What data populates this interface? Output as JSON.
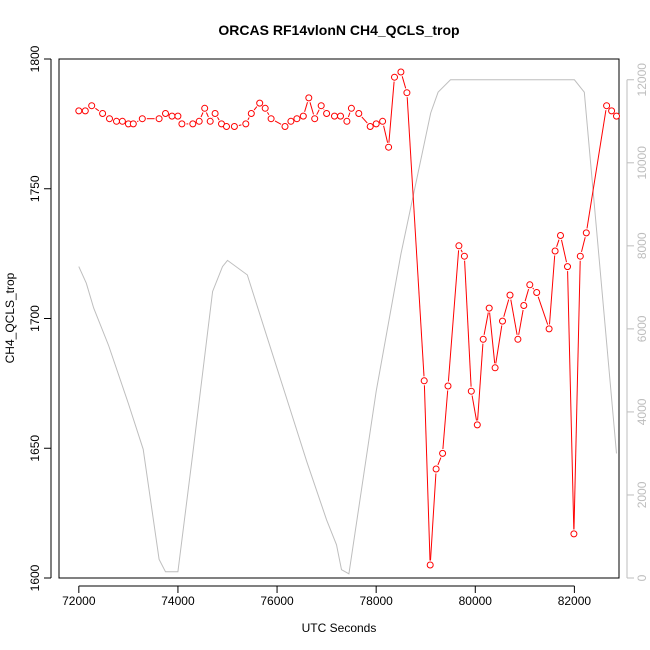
{
  "chart_data": {
    "type": "line",
    "title": "ORCAS RF14vlonN CH4_QCLS_trop",
    "xlabel": "UTC Seconds",
    "ylabel": "CH4_QCLS_trop",
    "xlim": [
      71600,
      82900
    ],
    "ylim": [
      1600,
      1800
    ],
    "y2lim": [
      0,
      12500
    ],
    "x_ticks": [
      72000,
      74000,
      76000,
      78000,
      80000,
      82000
    ],
    "y_ticks": [
      1600,
      1650,
      1700,
      1750,
      1800
    ],
    "y2_ticks": [
      0,
      2000,
      4000,
      6000,
      8000,
      10000,
      12000
    ],
    "grid": false,
    "colors": {
      "ch4": "#ff0000",
      "altitude": "#bebebe",
      "axis": "#000000",
      "right_axis": "#bdbdbd"
    },
    "series": [
      {
        "values_x": [
          72000,
          72130,
          72260,
          72480,
          72620,
          72760,
          72880,
          73000,
          73100,
          73280,
          73620,
          73750,
          73880,
          74000,
          74080,
          74300,
          74430,
          74540,
          74650,
          74750,
          74880,
          74980,
          75140,
          75370,
          75480,
          75650,
          75760,
          75880,
          76160,
          76280,
          76400,
          76530,
          76640,
          76760,
          76890,
          77000,
          77160,
          77280,
          77410,
          77500,
          77650,
          77880,
          78000,
          78130,
          78250,
          78370,
          78500,
          78620,
          78970,
          79090,
          79210,
          79340,
          79450,
          79670,
          79780,
          79920,
          80040,
          80160,
          80280,
          80400,
          80550,
          80700,
          80860,
          80980,
          81100,
          81240,
          81490,
          81610,
          81720,
          81860,
          81990,
          82120,
          82240,
          82650,
          82750,
          82850
        ],
        "values_y": [
          1780,
          1780,
          1782,
          1779,
          1777,
          1776,
          1776,
          1775,
          1775,
          1777,
          1777,
          1779,
          1778,
          1778,
          1775,
          1775,
          1776,
          1781,
          1776,
          1779,
          1775,
          1774,
          1774,
          1775,
          1779,
          1783,
          1781,
          1777,
          1774,
          1776,
          1777,
          1778,
          1785,
          1777,
          1782,
          1779,
          1778,
          1778,
          1776,
          1781,
          1779,
          1774,
          1775,
          1776,
          1766,
          1793,
          1795,
          1787,
          1676,
          1605,
          1642,
          1648,
          1674,
          1728,
          1724,
          1672,
          1659,
          1692,
          1704,
          1681,
          1699,
          1709,
          1692,
          1705,
          1713,
          1710,
          1696,
          1726,
          1732,
          1720,
          1617,
          1724,
          1733,
          1782,
          1780,
          1778
        ]
      },
      {
        "values_x": [
          72000,
          72150,
          72300,
          72600,
          73000,
          73300,
          73620,
          73750,
          73950,
          74000,
          74300,
          74700,
          74900,
          75000,
          75400,
          75800,
          76200,
          76600,
          77000,
          77200,
          77300,
          77450,
          78000,
          78500,
          79100,
          79250,
          79500,
          80000,
          81000,
          82000,
          82200,
          82850
        ],
        "values_y": [
          7500,
          7100,
          6500,
          5600,
          4200,
          3100,
          450,
          150,
          150,
          150,
          3000,
          6900,
          7500,
          7650,
          7300,
          5800,
          4300,
          2800,
          1400,
          800,
          200,
          100,
          4500,
          7800,
          11200,
          11700,
          12000,
          12000,
          12000,
          12000,
          11700,
          3000
        ]
      }
    ]
  }
}
